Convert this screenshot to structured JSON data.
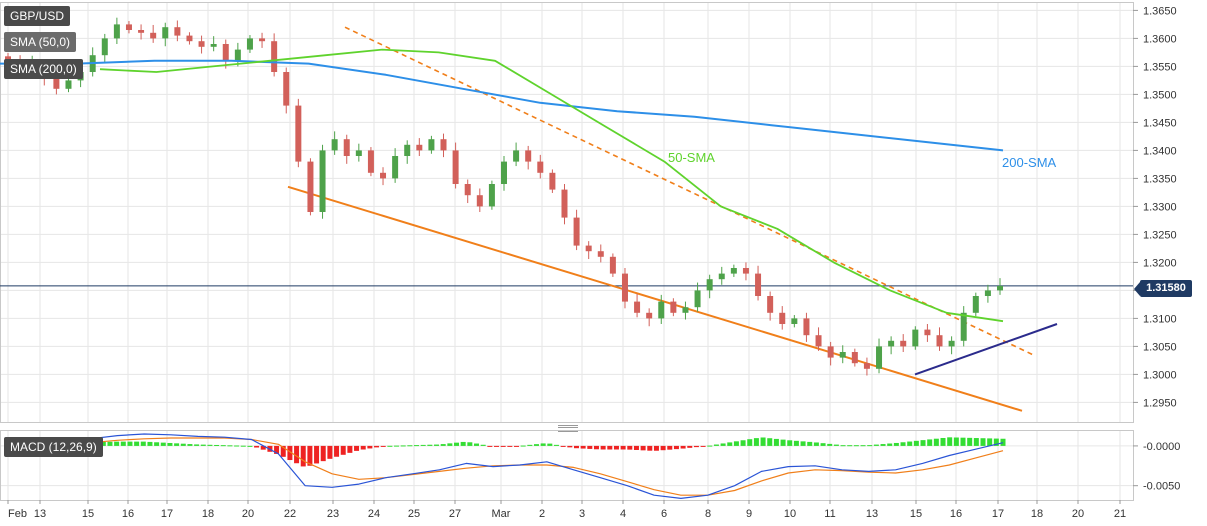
{
  "legend": {
    "symbol": "GBP/USD",
    "sma50": "SMA (50,0)",
    "sma200": "SMA (200,0)",
    "macd": "MACD (12,26,9)"
  },
  "current_price": "1.31580",
  "colors": {
    "bull": "#4ea24a",
    "bear": "#d2605a",
    "sma50": "#5fd32d",
    "sma200": "#2d8fe8",
    "channel": "#f07f1a",
    "support": "#2b2b8c",
    "macd_line": "#2a54d6",
    "signal_line": "#f07f1a",
    "hist_pos": "#33dd33",
    "hist_neg": "#ee2222",
    "price_tag": "#1f3a63"
  },
  "chart_data": [
    {
      "type": "candlestick",
      "title": "",
      "x_tick_labels": [
        "Feb",
        "13",
        "15",
        "16",
        "17",
        "18",
        "20",
        "22",
        "23",
        "24",
        "25",
        "27",
        "Mar",
        "2",
        "3",
        "4",
        "6",
        "8",
        "9",
        "10",
        "11",
        "13",
        "15",
        "16",
        "17",
        "18",
        "20",
        "21"
      ],
      "y_tick_labels": [
        "1.3650",
        "1.3600",
        "1.3550",
        "1.3500",
        "1.3450",
        "1.3400",
        "1.3350",
        "1.3300",
        "1.3250",
        "1.3200",
        "1.3150",
        "1.3100",
        "1.3050",
        "1.3000",
        "1.2950"
      ],
      "ylim": [
        1.2915,
        1.3665
      ],
      "grid": true,
      "last_price": 1.3158,
      "close_path": [
        1.356,
        1.3545,
        1.3555,
        1.353,
        1.351,
        1.3525,
        1.354,
        1.357,
        1.36,
        1.3625,
        1.3615,
        1.361,
        1.36,
        1.362,
        1.3605,
        1.3595,
        1.3585,
        1.359,
        1.356,
        1.358,
        1.36,
        1.3595,
        1.354,
        1.348,
        1.338,
        1.329,
        1.34,
        1.342,
        1.339,
        1.34,
        1.336,
        1.335,
        1.339,
        1.341,
        1.34,
        1.342,
        1.34,
        1.334,
        1.332,
        1.33,
        1.334,
        1.338,
        1.34,
        1.338,
        1.336,
        1.333,
        1.328,
        1.323,
        1.322,
        1.321,
        1.318,
        1.313,
        1.311,
        1.31,
        1.313,
        1.311,
        1.312,
        1.315,
        1.317,
        1.318,
        1.319,
        1.318,
        1.314,
        1.311,
        1.309,
        1.31,
        1.307,
        1.305,
        1.303,
        1.304,
        1.302,
        1.301,
        1.305,
        1.306,
        1.305,
        1.308,
        1.307,
        1.305,
        1.306,
        1.311,
        1.314,
        1.315,
        1.3158
      ],
      "sma50": [
        1.3545,
        1.354,
        1.355,
        1.356,
        1.357,
        1.358,
        1.3575,
        1.356,
        1.35,
        1.344,
        1.338,
        1.33,
        1.326,
        1.32,
        1.315,
        1.311,
        1.3095
      ],
      "sma200": [
        1.3555,
        1.3555,
        1.356,
        1.356,
        1.3555,
        1.3535,
        1.351,
        1.3485,
        1.347,
        1.346,
        1.3445,
        1.343,
        1.3415,
        1.34
      ],
      "annotations": [
        {
          "text": "50-SMA",
          "color": "#5fd32d"
        },
        {
          "text": "200-SMA",
          "color": "#2d8fe8"
        }
      ],
      "trendlines": [
        {
          "name": "falling resistance (dashed)",
          "from": 1.362,
          "to": 1.3035
        },
        {
          "name": "channel support",
          "from": 1.3335,
          "to": 1.2935
        },
        {
          "name": "rising support",
          "from": 1.3,
          "to": 1.309
        }
      ]
    },
    {
      "type": "macd",
      "title": "",
      "y_tick_labels": [
        "-0.0000",
        "-0.0050"
      ],
      "ylim": [
        -0.0068,
        0.002
      ],
      "macd": [
        0.0,
        0.0003,
        0.0005,
        0.0009,
        0.0013,
        0.0015,
        0.0014,
        0.0012,
        0.0011,
        0.0008,
        -0.001,
        -0.005,
        -0.0052,
        -0.0048,
        -0.004,
        -0.0035,
        -0.003,
        -0.0022,
        -0.0026,
        -0.0024,
        -0.002,
        -0.003,
        -0.004,
        -0.005,
        -0.0062,
        -0.0066,
        -0.0062,
        -0.005,
        -0.0032,
        -0.0026,
        -0.0025,
        -0.003,
        -0.0032,
        -0.003,
        -0.0022,
        -0.0012,
        -0.0004,
        0.0004
      ],
      "signal": [
        -0.0005,
        -0.0003,
        0.0,
        0.0004,
        0.0007,
        0.0009,
        0.001,
        0.001,
        0.001,
        0.0008,
        0.0002,
        -0.002,
        -0.0035,
        -0.0042,
        -0.004,
        -0.0036,
        -0.0032,
        -0.0028,
        -0.0025,
        -0.0024,
        -0.0024,
        -0.0027,
        -0.0035,
        -0.0045,
        -0.0055,
        -0.0062,
        -0.0062,
        -0.0056,
        -0.0044,
        -0.0034,
        -0.003,
        -0.0031,
        -0.0033,
        -0.0034,
        -0.003,
        -0.0024,
        -0.0015,
        -0.0006
      ]
    }
  ]
}
